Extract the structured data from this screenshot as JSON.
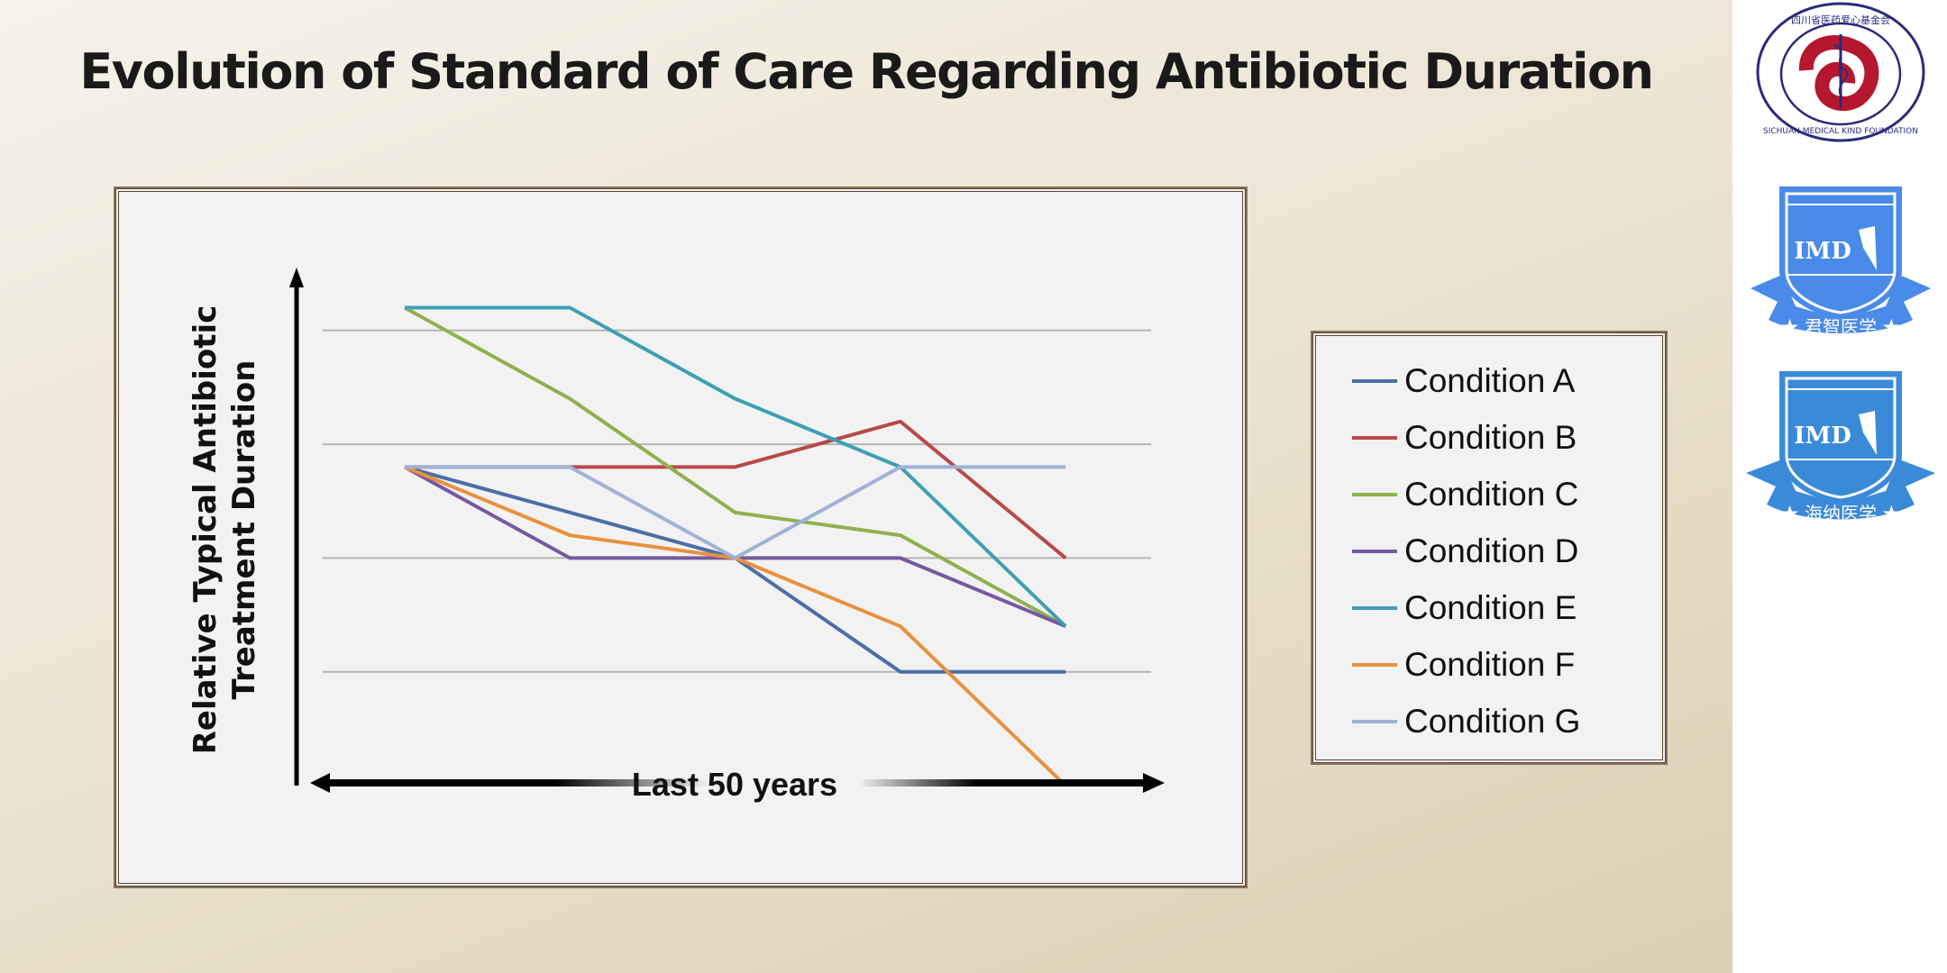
{
  "title": "Evolution of Standard of Care Regarding Antibiotic Duration",
  "chart_data": {
    "type": "line",
    "title": "Evolution of Standard of Care Regarding Antibiotic Duration",
    "xlabel": "Last 50 years",
    "ylabel": "Relative Typical Antibiotic Treatment Duration",
    "ylabel_lines": [
      "Relative Typical Antibiotic",
      "Treatment Duration"
    ],
    "x": [
      0,
      1,
      2,
      3,
      4
    ],
    "ylim": [
      0,
      4.5
    ],
    "grid": true,
    "gridlines": [
      1,
      2,
      3,
      4
    ],
    "legend": "right",
    "series": [
      {
        "name": "Condition A",
        "color": "#4a6fa5",
        "values": [
          2.8,
          2.4,
          2.0,
          1.0,
          1.0
        ]
      },
      {
        "name": "Condition B",
        "color": "#b84a47",
        "values": [
          2.8,
          2.8,
          2.8,
          3.2,
          2.0
        ]
      },
      {
        "name": "Condition C",
        "color": "#8fb04e",
        "values": [
          4.2,
          3.4,
          2.4,
          2.2,
          1.4
        ]
      },
      {
        "name": "Condition D",
        "color": "#7559a0",
        "values": [
          2.8,
          2.0,
          2.0,
          2.0,
          1.4
        ]
      },
      {
        "name": "Condition E",
        "color": "#3e9fb5",
        "values": [
          4.2,
          4.2,
          3.4,
          2.8,
          1.4
        ]
      },
      {
        "name": "Condition F",
        "color": "#e8913f",
        "values": [
          2.8,
          2.2,
          2.0,
          1.4,
          0.0
        ]
      },
      {
        "name": "Condition G",
        "color": "#9fb2d8",
        "values": [
          2.8,
          2.8,
          2.0,
          2.8,
          2.8
        ]
      }
    ]
  },
  "logos": [
    {
      "name": "Sichuan Medical Kind Foundation",
      "text": "四川省医药爱心基金会 SICHUAN MEDICAL KIND FOUNDATION",
      "color": "#2b2a7a"
    },
    {
      "name": "IMD 君智医学",
      "text": "IMD 君智医学",
      "color": "#4a8ae8"
    },
    {
      "name": "IMD 海纳医学",
      "text": "IMD 海纳医学",
      "color": "#3a8ad8"
    }
  ]
}
